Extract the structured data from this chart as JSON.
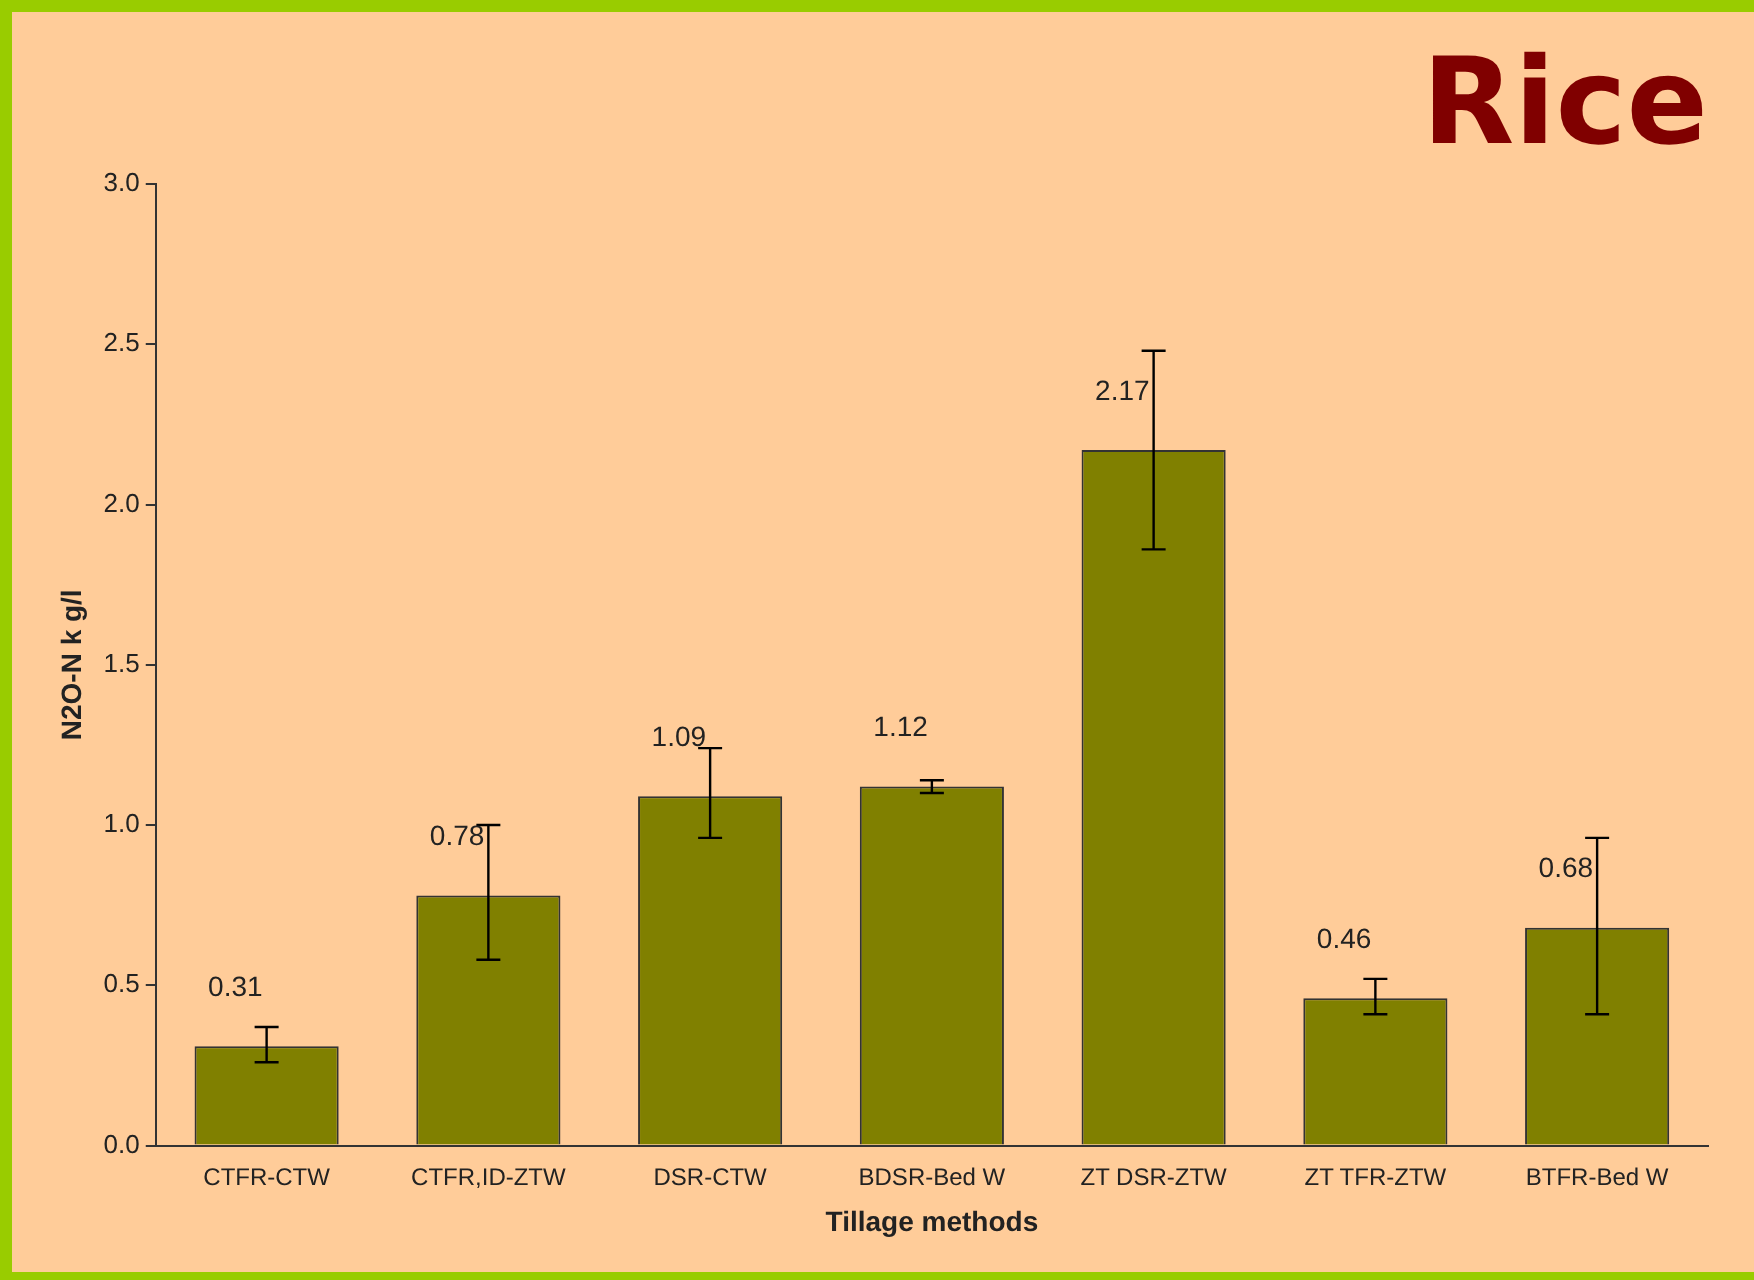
{
  "chart_data": {
    "type": "bar",
    "title": "Rice",
    "xlabel": "Tillage methods",
    "ylabel": "N2O-N k g/l",
    "categories": [
      "CTFR-CTW",
      "CTFR,ID-ZTW",
      "DSR-CTW",
      "BDSR-Bed W",
      "ZT DSR-ZTW",
      "ZT TFR-ZTW",
      "BTFR-Bed W"
    ],
    "values": [
      0.31,
      0.78,
      1.09,
      1.12,
      2.17,
      0.46,
      0.68
    ],
    "errors": [
      [
        0.26,
        0.37
      ],
      [
        0.58,
        1.0
      ],
      [
        0.96,
        1.24
      ],
      [
        1.1,
        1.14
      ],
      [
        1.86,
        2.48
      ],
      [
        0.41,
        0.52
      ],
      [
        0.41,
        0.96
      ]
    ],
    "color": "#808000",
    "data_labels": true,
    "grid": false,
    "legend": false,
    "ylim": [
      0,
      3
    ],
    "yticks": [
      {
        "value": 0,
        "label": "0.0"
      },
      {
        "value": 0.5,
        "label": "0.5"
      },
      {
        "value": 1,
        "label": "1.0"
      },
      {
        "value": 1.5,
        "label": "1.5"
      },
      {
        "value": 2,
        "label": "2.0"
      },
      {
        "value": 2.5,
        "label": "2.5"
      },
      {
        "value": 3,
        "label": "3.0"
      }
    ]
  }
}
